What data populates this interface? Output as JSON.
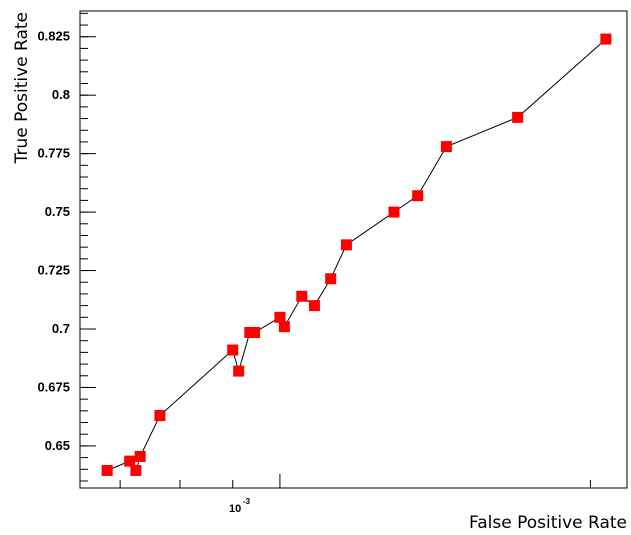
{
  "chart_data": {
    "type": "line",
    "title": "",
    "xlabel": "False Positive Rate",
    "ylabel": "True Positive Rate",
    "x_scale": "log",
    "x_major_tick_label": {
      "base": "10",
      "exponent": "-3"
    },
    "y_ticks": [
      "0.65",
      "0.675",
      "0.7",
      "0.725",
      "0.75",
      "0.775",
      "0.8",
      "0.825"
    ],
    "ylim": [
      0.632,
      0.836
    ],
    "xlim": [
      0.00064,
      0.00217
    ],
    "grid": false,
    "marker": "square",
    "marker_color": "#ff0000",
    "line_color": "#000000",
    "series": [
      {
        "points": [
          {
            "x": 0.00068,
            "y": 0.6395
          },
          {
            "x": 0.000715,
            "y": 0.6435
          },
          {
            "x": 0.000725,
            "y": 0.6395
          },
          {
            "x": 0.000732,
            "y": 0.6455
          },
          {
            "x": 0.000765,
            "y": 0.663
          },
          {
            "x": 0.0009,
            "y": 0.691
          },
          {
            "x": 0.000912,
            "y": 0.682
          },
          {
            "x": 0.000935,
            "y": 0.6985
          },
          {
            "x": 0.000945,
            "y": 0.6985
          },
          {
            "x": 0.001,
            "y": 0.705
          },
          {
            "x": 0.00101,
            "y": 0.701
          },
          {
            "x": 0.00105,
            "y": 0.714
          },
          {
            "x": 0.00108,
            "y": 0.71
          },
          {
            "x": 0.00112,
            "y": 0.7215
          },
          {
            "x": 0.00116,
            "y": 0.736
          },
          {
            "x": 0.00129,
            "y": 0.75
          },
          {
            "x": 0.00136,
            "y": 0.757
          },
          {
            "x": 0.00145,
            "y": 0.778
          },
          {
            "x": 0.0017,
            "y": 0.7905
          },
          {
            "x": 0.00207,
            "y": 0.824
          }
        ]
      }
    ]
  }
}
